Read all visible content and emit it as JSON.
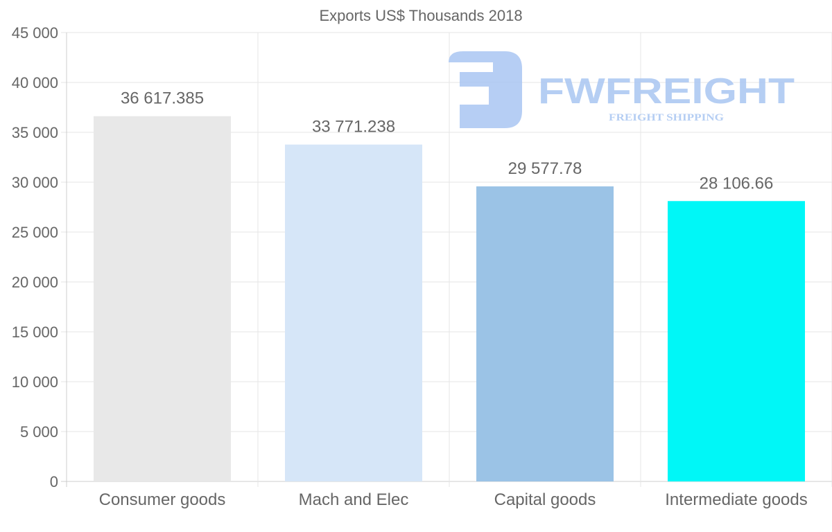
{
  "chart_data": {
    "type": "bar",
    "title": "Exports US$ Thousands 2018",
    "categories": [
      "Consumer goods",
      "Mach and Elec",
      "Capital goods",
      "Intermediate goods"
    ],
    "values": [
      36617.385,
      33771.238,
      29577.78,
      28106.66
    ],
    "value_labels": [
      "36 617.385",
      "33 771.238",
      "29 577.78",
      "28 106.66"
    ],
    "colors": [
      "#e8e8e8",
      "#d6e6f8",
      "#9bc3e6",
      "#00f7f7"
    ],
    "xlabel": "",
    "ylabel": "",
    "ylim": [
      0,
      45000
    ],
    "yticks": [
      0,
      5000,
      10000,
      15000,
      20000,
      25000,
      30000,
      35000,
      40000,
      45000
    ],
    "ytick_labels": [
      "0",
      "5 000",
      "10 000",
      "15 000",
      "20 000",
      "25 000",
      "30 000",
      "35 000",
      "40 000",
      "45 000"
    ],
    "grid": true,
    "legend": "none"
  },
  "watermark": {
    "brand": "FWFREIGHT",
    "tagline": "FREIGHT SHIPPING",
    "color": "#a9c6f2"
  }
}
